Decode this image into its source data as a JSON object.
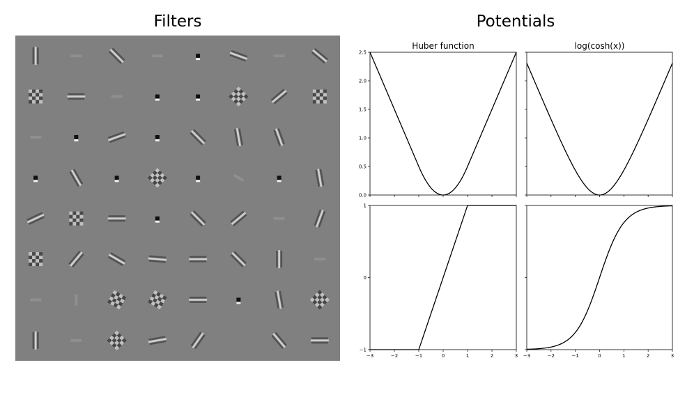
{
  "titles": {
    "filters": "Filters",
    "potentials": "Potentials"
  },
  "filters": {
    "rows": 8,
    "cols": 8,
    "background": "#808080",
    "cells": [
      {
        "k": "bar",
        "a": 90
      },
      {
        "k": "faint",
        "a": 0
      },
      {
        "k": "bar",
        "a": 45
      },
      {
        "k": "faint",
        "a": 0
      },
      {
        "k": "dot",
        "a": 0
      },
      {
        "k": "bar",
        "a": 20
      },
      {
        "k": "faint",
        "a": 0
      },
      {
        "k": "bar",
        "a": 40
      },
      {
        "k": "check",
        "a": 0
      },
      {
        "k": "bar",
        "a": 0
      },
      {
        "k": "faint",
        "a": 0
      },
      {
        "k": "dot",
        "a": 0
      },
      {
        "k": "dot",
        "a": 0
      },
      {
        "k": "check",
        "a": 45
      },
      {
        "k": "bar",
        "a": -40
      },
      {
        "k": "check",
        "a": 0
      },
      {
        "k": "faint",
        "a": 0
      },
      {
        "k": "dot",
        "a": 0
      },
      {
        "k": "bar",
        "a": -20
      },
      {
        "k": "dot",
        "a": 0
      },
      {
        "k": "bar",
        "a": 45
      },
      {
        "k": "bar",
        "a": 80
      },
      {
        "k": "bar",
        "a": 70
      },
      {
        "k": "none",
        "a": 0
      },
      {
        "k": "dot",
        "a": 0
      },
      {
        "k": "bar",
        "a": 60
      },
      {
        "k": "dot",
        "a": 0
      },
      {
        "k": "check",
        "a": 45
      },
      {
        "k": "dot",
        "a": 0
      },
      {
        "k": "faint",
        "a": 30
      },
      {
        "k": "dot",
        "a": 0
      },
      {
        "k": "bar",
        "a": 80
      },
      {
        "k": "bar",
        "a": -25
      },
      {
        "k": "check",
        "a": 0
      },
      {
        "k": "bar",
        "a": 0
      },
      {
        "k": "dot",
        "a": 0
      },
      {
        "k": "bar",
        "a": 45
      },
      {
        "k": "bar",
        "a": -40
      },
      {
        "k": "faint",
        "a": 0
      },
      {
        "k": "bar",
        "a": -70
      },
      {
        "k": "check",
        "a": 0
      },
      {
        "k": "bar",
        "a": -50
      },
      {
        "k": "bar",
        "a": 30
      },
      {
        "k": "bar",
        "a": 5
      },
      {
        "k": "bar",
        "a": 0
      },
      {
        "k": "bar",
        "a": 45
      },
      {
        "k": "bar",
        "a": 90
      },
      {
        "k": "faint",
        "a": 0
      },
      {
        "k": "faint",
        "a": 0
      },
      {
        "k": "faint",
        "a": 90
      },
      {
        "k": "check",
        "a": 30
      },
      {
        "k": "check",
        "a": 30
      },
      {
        "k": "bar",
        "a": 0
      },
      {
        "k": "dot",
        "a": 0
      },
      {
        "k": "bar",
        "a": 80
      },
      {
        "k": "check",
        "a": -45
      },
      {
        "k": "bar",
        "a": 90
      },
      {
        "k": "faint",
        "a": 0
      },
      {
        "k": "check",
        "a": 45
      },
      {
        "k": "bar",
        "a": -10
      },
      {
        "k": "bar",
        "a": -55
      },
      {
        "k": "none",
        "a": 0
      },
      {
        "k": "bar",
        "a": 50
      },
      {
        "k": "bar",
        "a": 0
      }
    ]
  },
  "chart_data": [
    {
      "type": "line",
      "title": "Huber function",
      "function": "huber",
      "x": [
        -3,
        -2.5,
        -2,
        -1.5,
        -1,
        -0.75,
        -0.5,
        -0.25,
        0,
        0.25,
        0.5,
        0.75,
        1,
        1.5,
        2,
        2.5,
        3
      ],
      "y": [
        2.5,
        2,
        1.5,
        1,
        0.5,
        0.28125,
        0.125,
        0.03125,
        0,
        0.03125,
        0.125,
        0.28125,
        0.5,
        1,
        1.5,
        2,
        2.5
      ],
      "xlim": [
        -3,
        3
      ],
      "ylim": [
        0,
        2.5
      ],
      "yticks": [
        0.0,
        0.5,
        1.0,
        1.5,
        2.0,
        2.5
      ],
      "ytick_labels": [
        "0.0",
        "0.5",
        "1.0",
        "1.5",
        "2.0",
        "2.5"
      ]
    },
    {
      "type": "line",
      "title": "log(cosh(x))",
      "function": "logcosh",
      "x": [
        -3,
        -2.5,
        -2,
        -1.5,
        -1,
        -0.75,
        -0.5,
        -0.25,
        0,
        0.25,
        0.5,
        0.75,
        1,
        1.5,
        2,
        2.5,
        3
      ],
      "y": [
        2.3093,
        1.8133,
        1.325,
        0.8593,
        0.4338,
        0.2533,
        0.1201,
        0.031,
        0,
        0.031,
        0.1201,
        0.2533,
        0.4338,
        0.8593,
        1.325,
        1.8133,
        2.3093
      ],
      "xlim": [
        -3,
        3
      ],
      "ylim": [
        0,
        2.5
      ]
    },
    {
      "type": "line",
      "title": "",
      "function": "huber_derivative",
      "x": [
        -3,
        -1,
        1,
        3
      ],
      "y": [
        -1,
        -1,
        1,
        1
      ],
      "xlim": [
        -3,
        3
      ],
      "ylim": [
        -1,
        1
      ],
      "xticks": [
        -3,
        -2,
        -1,
        0,
        1,
        2,
        3
      ],
      "xtick_labels": [
        "−3",
        "−2",
        "−1",
        "0",
        "1",
        "2",
        "3"
      ],
      "yticks": [
        -1,
        0,
        1
      ],
      "ytick_labels": [
        "−1",
        "0",
        "1"
      ]
    },
    {
      "type": "line",
      "title": "",
      "function": "tanh",
      "x": [
        -3,
        -2.5,
        -2,
        -1.5,
        -1,
        -0.5,
        0,
        0.5,
        1,
        1.5,
        2,
        2.5,
        3
      ],
      "y": [
        -0.9951,
        -0.9866,
        -0.964,
        -0.9051,
        -0.7616,
        -0.4621,
        0,
        0.4621,
        0.7616,
        0.9051,
        0.964,
        0.9866,
        0.9951
      ],
      "xlim": [
        -3,
        3
      ],
      "ylim": [
        -1,
        1
      ],
      "xticks": [
        -3,
        -2,
        -1,
        0,
        1,
        2,
        3
      ],
      "xtick_labels": [
        "−3",
        "−2",
        "−1",
        "0",
        "1",
        "2",
        "3"
      ]
    }
  ]
}
